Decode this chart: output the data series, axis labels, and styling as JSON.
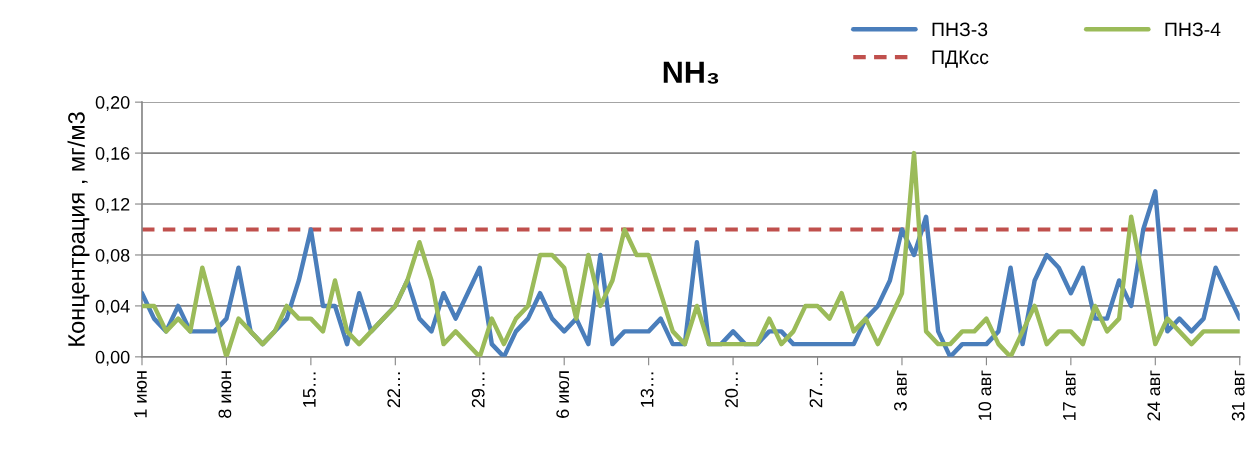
{
  "chart_data": {
    "type": "line",
    "title": "NH₃",
    "ylabel": "Концентрация , мг/м3",
    "categories": [
      "1 июн",
      null,
      null,
      null,
      null,
      null,
      null,
      "8 июн",
      null,
      null,
      null,
      null,
      null,
      null,
      "15…",
      null,
      null,
      null,
      null,
      null,
      null,
      "22…",
      null,
      null,
      null,
      null,
      null,
      null,
      "29…",
      null,
      null,
      null,
      null,
      null,
      null,
      "6 июл",
      null,
      null,
      null,
      null,
      null,
      null,
      "13…",
      null,
      null,
      null,
      null,
      null,
      null,
      "20…",
      null,
      null,
      null,
      null,
      null,
      null,
      "27…",
      null,
      null,
      null,
      null,
      null,
      null,
      "3 авг",
      null,
      null,
      null,
      null,
      null,
      null,
      "10 авг",
      null,
      null,
      null,
      null,
      null,
      null,
      "17 авг",
      null,
      null,
      null,
      null,
      null,
      null,
      "24 авг",
      null,
      null,
      null,
      null,
      null,
      null,
      "31 авг"
    ],
    "series": [
      {
        "name": "ПНЗ-3",
        "color": "#4a7ebb",
        "values": [
          0.05,
          0.03,
          0.02,
          0.04,
          0.02,
          0.02,
          0.02,
          0.03,
          0.07,
          0.02,
          0.01,
          0.02,
          0.03,
          0.06,
          0.1,
          0.04,
          0.04,
          0.01,
          0.05,
          0.02,
          0.03,
          0.04,
          0.06,
          0.03,
          0.02,
          0.05,
          0.03,
          0.05,
          0.07,
          0.01,
          0.0,
          0.02,
          0.03,
          0.05,
          0.03,
          0.02,
          0.03,
          0.01,
          0.08,
          0.01,
          0.02,
          0.02,
          0.02,
          0.03,
          0.01,
          0.01,
          0.09,
          0.01,
          0.01,
          0.02,
          0.01,
          0.01,
          0.02,
          0.02,
          0.01,
          0.01,
          0.01,
          0.01,
          0.01,
          0.01,
          0.03,
          0.04,
          0.06,
          0.1,
          0.08,
          0.11,
          0.02,
          0.0,
          0.01,
          0.01,
          0.01,
          0.02,
          0.07,
          0.01,
          0.06,
          0.08,
          0.07,
          0.05,
          0.07,
          0.03,
          0.03,
          0.06,
          0.04,
          0.1,
          0.13,
          0.02,
          0.03,
          0.02,
          0.03,
          0.07,
          0.05,
          0.03
        ]
      },
      {
        "name": "ПНЗ-4",
        "color": "#9bbb59",
        "values": [
          0.04,
          0.04,
          0.02,
          0.03,
          0.02,
          0.07,
          0.035,
          0.0,
          0.03,
          0.02,
          0.01,
          0.02,
          0.04,
          0.03,
          0.03,
          0.02,
          0.06,
          0.02,
          0.01,
          0.02,
          0.03,
          0.04,
          0.06,
          0.09,
          0.06,
          0.01,
          0.02,
          0.01,
          0.0,
          0.03,
          0.01,
          0.03,
          0.04,
          0.08,
          0.08,
          0.07,
          0.03,
          0.08,
          0.04,
          0.06,
          0.1,
          0.08,
          0.08,
          0.05,
          0.02,
          0.01,
          0.04,
          0.01,
          0.01,
          0.01,
          0.01,
          0.01,
          0.03,
          0.01,
          0.02,
          0.04,
          0.04,
          0.03,
          0.05,
          0.02,
          0.03,
          0.01,
          0.03,
          0.05,
          0.16,
          0.02,
          0.01,
          0.01,
          0.02,
          0.02,
          0.03,
          0.01,
          0.0,
          0.02,
          0.04,
          0.01,
          0.02,
          0.02,
          0.01,
          0.04,
          0.02,
          0.03,
          0.11,
          0.06,
          0.01,
          0.03,
          0.02,
          0.01,
          0.02,
          0.02,
          0.02,
          0.02
        ]
      }
    ],
    "ref_lines": [
      {
        "axis": "y",
        "value": 0.1,
        "label": "ПДКсс",
        "color": "#c0504d",
        "line_style": "dashed"
      }
    ],
    "ylim": [
      0,
      0.2
    ],
    "yticks": [
      {
        "value": 0,
        "label": "0,00"
      },
      {
        "value": 0.04,
        "label": "0,04"
      },
      {
        "value": 0.08,
        "label": "0,08"
      },
      {
        "value": 0.12,
        "label": "0,12"
      },
      {
        "value": 0.16,
        "label": "0,16"
      },
      {
        "value": 0.2,
        "label": "0,20"
      }
    ],
    "grid": "y",
    "legend": "top right",
    "marker": "none",
    "line_style": "solid"
  }
}
